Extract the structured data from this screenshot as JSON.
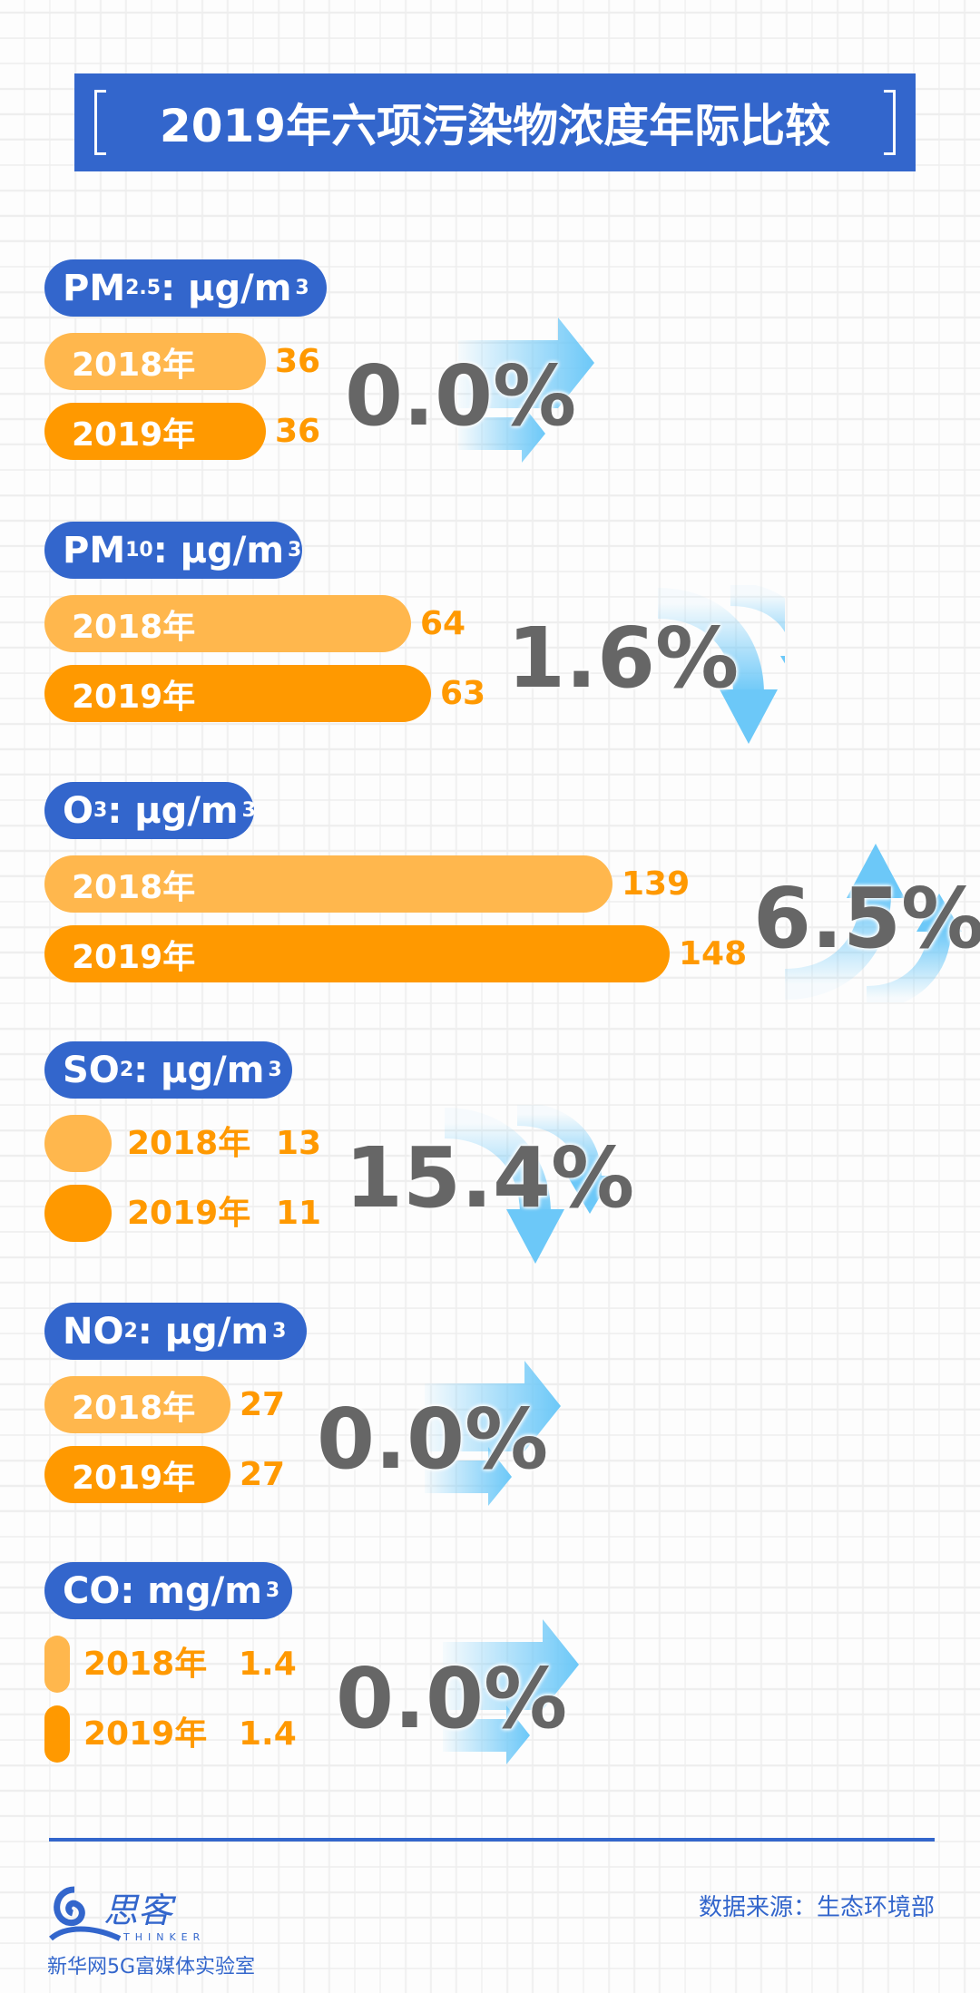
{
  "title": "2019年六项污染物浓度年际比较",
  "sections": [
    {
      "name": "PM",
      "sub": "2.5",
      "unit": " : μg/m",
      "sup": "3",
      "y2018": "2018年",
      "v2018": "36",
      "y2019": "2019年",
      "v2019": "36",
      "change": "0.0%",
      "trend": "flat"
    },
    {
      "name": "PM",
      "sub": "10",
      "unit": " : μg/m",
      "sup": "3",
      "y2018": "2018年",
      "v2018": "64",
      "y2019": "2019年",
      "v2019": "63",
      "change": "1.6%",
      "trend": "down"
    },
    {
      "name": "O",
      "sub": "3",
      "unit": ": μg/m",
      "sup": "3",
      "y2018": "2018年",
      "v2018": "139",
      "y2019": "2019年",
      "v2019": "148",
      "change": "6.5%",
      "trend": "up"
    },
    {
      "name": "SO",
      "sub": "2",
      "unit": " : μg/m",
      "sup": "3",
      "y2018": "2018年",
      "v2018": "13",
      "y2019": "2019年",
      "v2019": "11",
      "change": "15.4%",
      "trend": "down"
    },
    {
      "name": "NO",
      "sub": "2",
      "unit": " : μg/m",
      "sup": "3",
      "y2018": "2018年",
      "v2018": "27",
      "y2019": "2019年",
      "v2019": "27",
      "change": "0.0%",
      "trend": "flat"
    },
    {
      "name": "CO",
      "sub": "",
      "unit": " : mg/m",
      "sup": "3",
      "y2018": "2018年",
      "v2018": "1.4",
      "y2019": "2019年",
      "v2019": "1.4",
      "change": "0.0%",
      "trend": "flat"
    }
  ],
  "footer": {
    "logo_text": "思客 THINKER",
    "logo_sub": "新华网5G富媒体实验室",
    "source": "数据来源：生态环境部"
  },
  "colors": {
    "brand": "#3366cc",
    "bar_2018": "#ffb74d",
    "bar_2019": "#ff9900",
    "value": "#ff9900",
    "percent": "#666666",
    "arrow": "#6cc8f8"
  }
}
